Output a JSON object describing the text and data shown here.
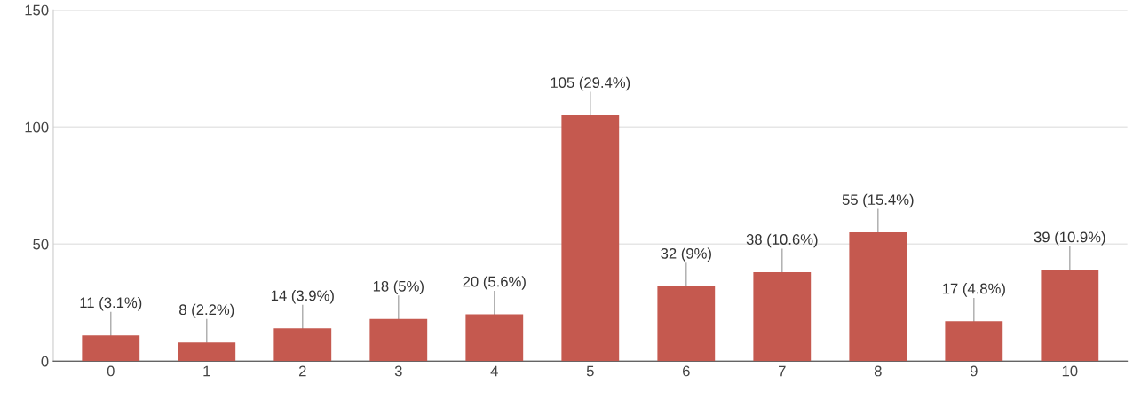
{
  "chart_data": {
    "type": "bar",
    "categories": [
      "0",
      "1",
      "2",
      "3",
      "4",
      "5",
      "6",
      "7",
      "8",
      "9",
      "10"
    ],
    "values": [
      11,
      8,
      14,
      18,
      20,
      105,
      32,
      38,
      55,
      17,
      39
    ],
    "value_labels": [
      "11 (3.1%)",
      "8 (2.2%)",
      "14 (3.9%)",
      "18 (5%)",
      "20 (5.6%)",
      "105 (29.4%)",
      "32 (9%)",
      "38 (10.6%)",
      "55 (15.4%)",
      "17 (4.8%)",
      "39 (10.9%)"
    ],
    "color": "#c5594f",
    "ylim": [
      0,
      150
    ],
    "yticks": [
      0,
      50,
      100,
      150
    ],
    "grid": "y"
  }
}
